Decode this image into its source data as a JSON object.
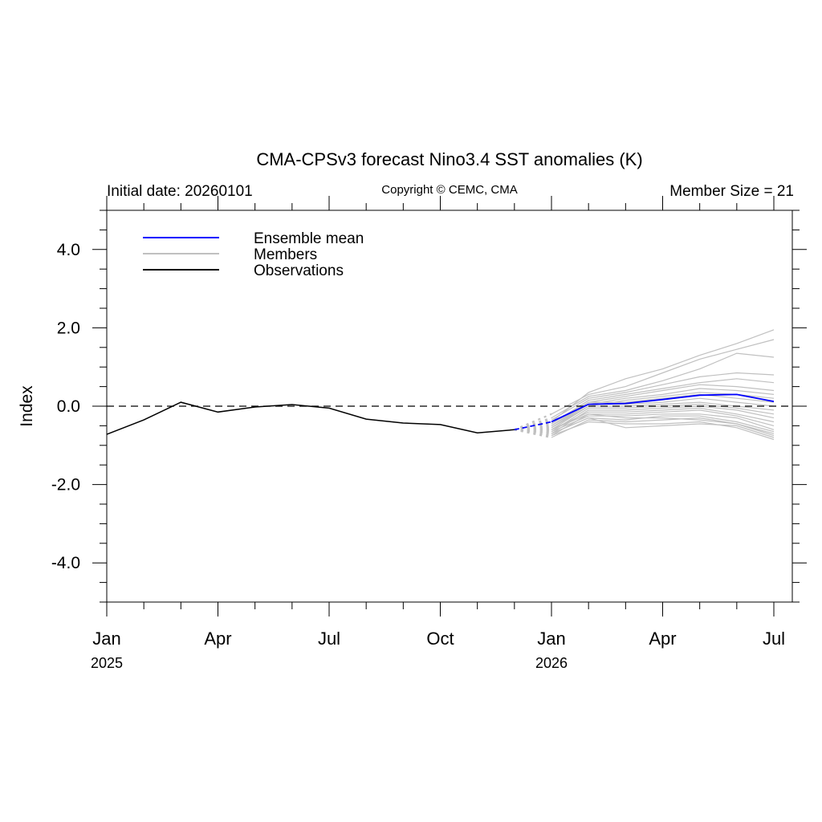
{
  "chart_data": {
    "type": "line",
    "title": "CMA-CPSv3 forecast Nino3.4 SST anomalies (K)",
    "subtitle_left": "Initial date: 20260101",
    "subtitle_center": "Copyright © CEMC, CMA",
    "subtitle_right": "Member Size = 21",
    "ylabel": "Index",
    "ylim": [
      -5,
      5
    ],
    "xlim": [
      "2025-01",
      "2026-07"
    ],
    "y_ticks": [
      {
        "value": 4,
        "label": "4.0"
      },
      {
        "value": 2,
        "label": "2.0"
      },
      {
        "value": 0,
        "label": "0.0"
      },
      {
        "value": -2,
        "label": "-2.0"
      },
      {
        "value": -4,
        "label": "-4.0"
      }
    ],
    "x_ticks": [
      {
        "month": "2025-01",
        "label": "Jan",
        "year": "2025"
      },
      {
        "month": "2025-04",
        "label": "Apr",
        "year": ""
      },
      {
        "month": "2025-07",
        "label": "Jul",
        "year": ""
      },
      {
        "month": "2025-10",
        "label": "Oct",
        "year": ""
      },
      {
        "month": "2026-01",
        "label": "Jan",
        "year": "2026"
      },
      {
        "month": "2026-04",
        "label": "Apr",
        "year": ""
      },
      {
        "month": "2026-07",
        "label": "Jul",
        "year": ""
      }
    ],
    "zero_line": {
      "value": 0,
      "style": "dashed"
    },
    "legend": {
      "position": "top-left",
      "entries": [
        {
          "label": "Ensemble mean",
          "color": "#0000ff"
        },
        {
          "label": "Members",
          "color": "#c0c0c0"
        },
        {
          "label": "Observations",
          "color": "#000000"
        }
      ]
    },
    "observations": {
      "color": "#000000",
      "x": [
        "2025-01",
        "2025-02",
        "2025-03",
        "2025-04",
        "2025-05",
        "2025-06",
        "2025-07",
        "2025-08",
        "2025-09",
        "2025-10",
        "2025-11",
        "2025-12"
      ],
      "values": [
        -0.72,
        -0.35,
        0.1,
        -0.15,
        -0.02,
        0.04,
        -0.05,
        -0.33,
        -0.43,
        -0.47,
        -0.68,
        -0.6
      ]
    },
    "ensemble_mean": {
      "color": "#0000ff",
      "x": [
        "2025-12",
        "2026-01",
        "2026-02",
        "2026-03",
        "2026-04",
        "2026-05",
        "2026-06",
        "2026-07"
      ],
      "values": [
        -0.6,
        -0.4,
        0.05,
        0.07,
        0.17,
        0.28,
        0.3,
        0.12
      ]
    },
    "members": {
      "color": "#c0c0c0",
      "x": [
        "2026-01",
        "2026-02",
        "2026-03",
        "2026-04",
        "2026-05",
        "2026-06",
        "2026-07"
      ],
      "values": [
        [
          -0.4,
          0.35,
          0.7,
          0.95,
          1.3,
          1.6,
          1.95
        ],
        [
          -0.2,
          0.3,
          0.5,
          0.85,
          1.2,
          1.45,
          1.7
        ],
        [
          -0.3,
          0.25,
          0.4,
          0.65,
          0.95,
          1.35,
          1.25
        ],
        [
          -0.35,
          0.2,
          0.35,
          0.55,
          0.75,
          0.85,
          0.8
        ],
        [
          -0.45,
          0.15,
          0.3,
          0.45,
          0.6,
          0.7,
          0.6
        ],
        [
          -0.5,
          0.1,
          0.25,
          0.4,
          0.55,
          0.5,
          0.4
        ],
        [
          -0.55,
          0.05,
          0.2,
          0.3,
          0.45,
          0.4,
          0.3
        ],
        [
          -0.6,
          0.0,
          0.15,
          0.25,
          0.35,
          0.3,
          0.2
        ],
        [
          -0.45,
          0.1,
          0.1,
          0.2,
          0.3,
          0.2,
          0.1
        ],
        [
          -0.5,
          0.05,
          0.05,
          0.1,
          0.2,
          0.1,
          0.0
        ],
        [
          -0.55,
          0.0,
          0.0,
          0.05,
          0.1,
          0.0,
          -0.1
        ],
        [
          -0.65,
          -0.05,
          -0.05,
          0.0,
          0.05,
          -0.05,
          -0.2
        ],
        [
          -0.7,
          -0.1,
          -0.1,
          -0.05,
          0.0,
          -0.1,
          -0.3
        ],
        [
          -0.6,
          -0.15,
          -0.15,
          -0.1,
          -0.05,
          -0.2,
          -0.4
        ],
        [
          -0.75,
          -0.2,
          -0.2,
          -0.15,
          -0.1,
          -0.25,
          -0.5
        ],
        [
          -0.65,
          -0.25,
          -0.25,
          -0.2,
          -0.2,
          -0.3,
          -0.6
        ],
        [
          -0.7,
          -0.3,
          -0.35,
          -0.25,
          -0.25,
          -0.4,
          -0.65
        ],
        [
          -0.8,
          -0.35,
          -0.4,
          -0.35,
          -0.3,
          -0.45,
          -0.75
        ],
        [
          -0.75,
          -0.4,
          -0.45,
          -0.45,
          -0.4,
          -0.55,
          -0.85
        ],
        [
          -0.7,
          -0.3,
          -0.55,
          -0.5,
          -0.45,
          -0.5,
          -0.8
        ],
        [
          -0.6,
          -0.2,
          -0.3,
          -0.3,
          -0.35,
          -0.45,
          -0.7
        ]
      ]
    }
  }
}
